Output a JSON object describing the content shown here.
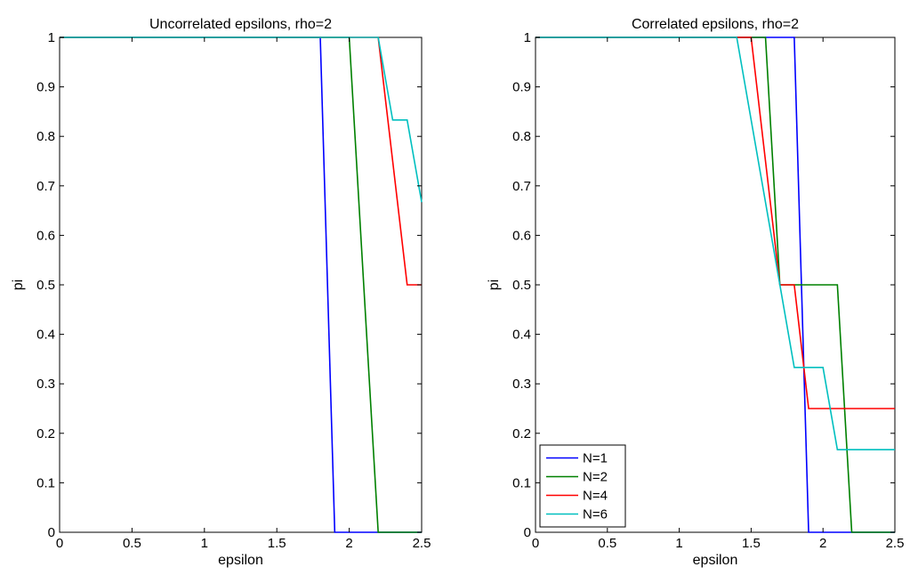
{
  "chart_data": [
    {
      "type": "line",
      "title": "Uncorrelated epsilons, rho=2",
      "xlabel": "epsilon",
      "ylabel": "pi",
      "xlim": [
        0,
        2.5
      ],
      "ylim": [
        0,
        1
      ],
      "xticks": [
        "0",
        "0.5",
        "1",
        "1.5",
        "2",
        "2.5"
      ],
      "yticks": [
        "0",
        "0.1",
        "0.2",
        "0.3",
        "0.4",
        "0.5",
        "0.6",
        "0.7",
        "0.8",
        "0.9",
        "1"
      ],
      "grid": false,
      "legend": null,
      "series": [
        {
          "color": "#0000ff",
          "points": [
            [
              0,
              1
            ],
            [
              1.8,
              1
            ],
            [
              1.9,
              0
            ],
            [
              2.5,
              0
            ]
          ]
        },
        {
          "color": "#008000",
          "points": [
            [
              0,
              1
            ],
            [
              2.0,
              1
            ],
            [
              2.2,
              0
            ],
            [
              2.5,
              0
            ]
          ]
        },
        {
          "color": "#ff0000",
          "points": [
            [
              0,
              1
            ],
            [
              2.2,
              1
            ],
            [
              2.4,
              0.5
            ],
            [
              2.5,
              0.5
            ]
          ]
        },
        {
          "color": "#00bfbf",
          "points": [
            [
              0,
              1
            ],
            [
              2.2,
              1
            ],
            [
              2.3,
              0.833
            ],
            [
              2.4,
              0.833
            ],
            [
              2.5,
              0.667
            ]
          ]
        }
      ]
    },
    {
      "type": "line",
      "title": "Correlated epsilons, rho=2",
      "xlabel": "epsilon",
      "ylabel": "pi",
      "xlim": [
        0,
        2.5
      ],
      "ylim": [
        0,
        1
      ],
      "xticks": [
        "0",
        "0.5",
        "1",
        "1.5",
        "2",
        "2.5"
      ],
      "yticks": [
        "0",
        "0.1",
        "0.2",
        "0.3",
        "0.4",
        "0.5",
        "0.6",
        "0.7",
        "0.8",
        "0.9",
        "1"
      ],
      "grid": false,
      "legend": "bottom-left",
      "series": [
        {
          "name": "N=1",
          "color": "#0000ff",
          "points": [
            [
              0,
              1
            ],
            [
              1.8,
              1
            ],
            [
              1.9,
              0
            ],
            [
              2.5,
              0
            ]
          ]
        },
        {
          "name": "N=2",
          "color": "#008000",
          "points": [
            [
              0,
              1
            ],
            [
              1.6,
              1
            ],
            [
              1.7,
              0.5
            ],
            [
              2.1,
              0.5
            ],
            [
              2.2,
              0
            ],
            [
              2.5,
              0
            ]
          ]
        },
        {
          "name": "N=4",
          "color": "#ff0000",
          "points": [
            [
              0,
              1
            ],
            [
              1.5,
              1
            ],
            [
              1.7,
              0.5
            ],
            [
              1.8,
              0.5
            ],
            [
              1.9,
              0.25
            ],
            [
              2.5,
              0.25
            ]
          ]
        },
        {
          "name": "N=6",
          "color": "#00bfbf",
          "points": [
            [
              0,
              1
            ],
            [
              1.4,
              1
            ],
            [
              1.7,
              0.5
            ],
            [
              1.8,
              0.333
            ],
            [
              2.0,
              0.333
            ],
            [
              2.1,
              0.167
            ],
            [
              2.5,
              0.167
            ]
          ]
        }
      ]
    }
  ]
}
